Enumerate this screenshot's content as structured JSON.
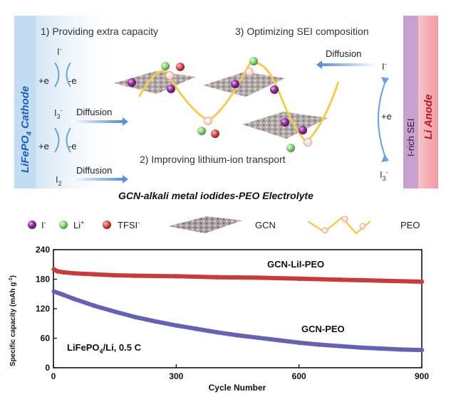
{
  "schematic": {
    "cathode_label": "LiFePO",
    "cathode_sub": "4",
    "cathode_suffix": " Cathode",
    "anode_label": "Li Anode",
    "sei_label": "I-rich SEI",
    "label1": "1) Providing extra capacity",
    "label2": "2) Improving lithium-ion transport",
    "label3": "3) Optimizing SEI composition",
    "diffusion": "Diffusion",
    "electrolyte_title": "GCN-alkali metal iodides-PEO Electrolyte",
    "plus_e": "+e",
    "minus_e": "-e",
    "iodide": "I",
    "iodide_sup": "-",
    "triiodide": "I",
    "triiodide_sub": "3",
    "triiodide_sup": "-",
    "iodine": "I",
    "iodine_sub": "2"
  },
  "legend": {
    "iodide": "I",
    "iodide_sup": "-",
    "li": "Li",
    "li_sup": "+",
    "tfsi": "TFSI",
    "tfsi_sup": "-",
    "gcn": "GCN",
    "peo": "PEO"
  },
  "colors": {
    "iodide": "#8e2f95",
    "li": "#7ec86e",
    "tfsi": "#c9413c",
    "peo": "#f2cc55",
    "cathode_panel": "#cfe2f3",
    "anode_panel": "#f5b3b8",
    "sei_panel": "#c8a0d0",
    "series_lil": "#c43c3c",
    "series_gcn": "#6563b0"
  },
  "chart_data": {
    "type": "scatter",
    "title": "",
    "xlabel": "Cycle Number",
    "ylabel": "Specific capacity (mAh g",
    "ylabel_sup": "-1",
    "ylabel_end": ")",
    "xlim": [
      0,
      900
    ],
    "ylim": [
      0,
      240
    ],
    "xticks": [
      0,
      300,
      600,
      900
    ],
    "yticks": [
      0,
      60,
      120,
      180,
      240
    ],
    "annotation_prefix": "LiFePO",
    "annotation_sub": "4",
    "annotation_suffix": "/Li, 0.5 C",
    "series": [
      {
        "name": "GCN-LiI-PEO",
        "x": [
          1,
          10,
          25,
          50,
          100,
          150,
          200,
          300,
          400,
          500,
          600,
          700,
          800,
          900
        ],
        "y": [
          200,
          196,
          194,
          192,
          190,
          188,
          187,
          186,
          184,
          183,
          181,
          179,
          177,
          175
        ]
      },
      {
        "name": "GCN-PEO",
        "x": [
          1,
          25,
          50,
          100,
          150,
          200,
          250,
          300,
          350,
          400,
          450,
          500,
          550,
          600,
          650,
          700,
          750,
          800,
          850,
          900
        ],
        "y": [
          155,
          148,
          140,
          126,
          114,
          103,
          94,
          86,
          79,
          72,
          66,
          61,
          56,
          51,
          47,
          44,
          41,
          39,
          37,
          36
        ]
      }
    ]
  }
}
